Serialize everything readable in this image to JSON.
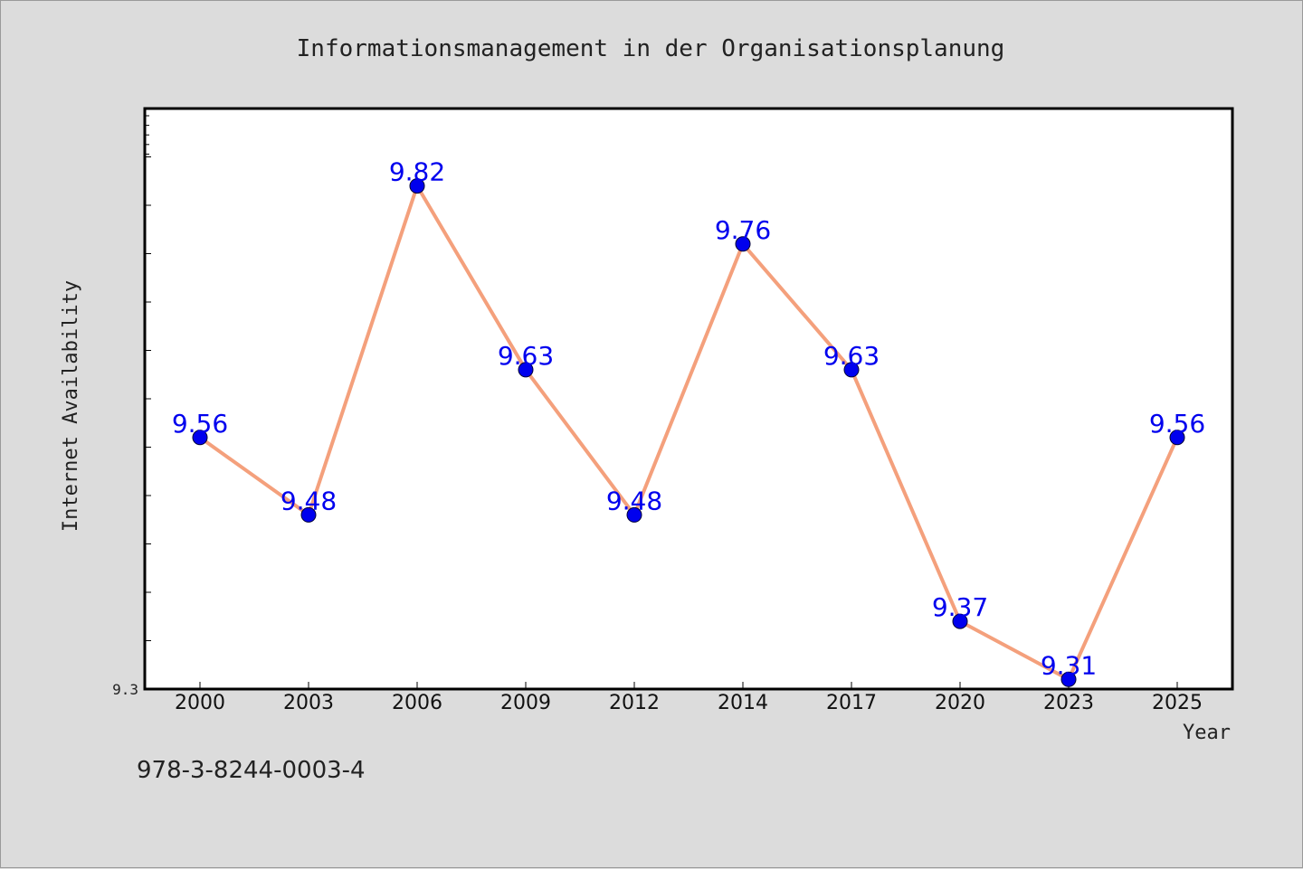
{
  "chart_data": {
    "type": "line",
    "title": "Informationsmanagement in der Organisationsplanung",
    "xlabel": "Year",
    "ylabel": "Internet Availability",
    "categories": [
      "2000",
      "2003",
      "2006",
      "2009",
      "2012",
      "2014",
      "2017",
      "2020",
      "2023",
      "2025"
    ],
    "series": [
      {
        "values": [
          9.56,
          9.48,
          9.82,
          9.63,
          9.48,
          9.76,
          9.63,
          9.37,
          9.31,
          9.56
        ],
        "labels": [
          "9.56",
          "9.48",
          "9.82",
          "9.63",
          "9.48",
          "9.76",
          "9.63",
          "9.37",
          "9.31",
          "9.56"
        ]
      }
    ],
    "ylim": [
      9.3,
      9.9
    ],
    "yticks_labeled": [
      "9.3"
    ],
    "grid": false,
    "colors": {
      "line": "#f4a07c",
      "marker": "#0000ee",
      "data_label": "#0000ee",
      "plot_bg": "#ffffff",
      "figure_bg": "#dcdcdc"
    }
  },
  "footer": {
    "isbn": "978-3-8244-0003-4"
  }
}
